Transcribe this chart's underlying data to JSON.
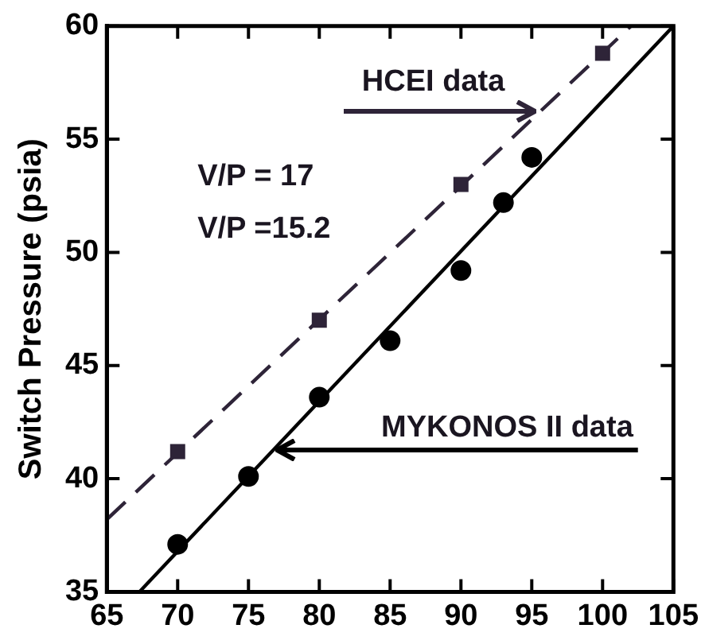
{
  "chart_data": {
    "type": "scatter",
    "ylabel": "Switch Pressure (psia)",
    "xlim": [
      65,
      105
    ],
    "xticks": [
      65,
      70,
      75,
      80,
      85,
      90,
      95,
      100,
      105
    ],
    "ylim": [
      35,
      60
    ],
    "yticks": [
      35,
      40,
      45,
      50,
      55,
      60
    ],
    "grid": false,
    "legend": false,
    "series": [
      {
        "color": "#2e2438",
        "marker": "square",
        "x": [
          70,
          80,
          90,
          100
        ],
        "values": [
          41.2,
          47.0,
          53.0,
          58.8
        ]
      },
      {
        "type": "line",
        "color": "#2e2438",
        "marker": "none",
        "line_style": "dashed",
        "x": [
          65,
          102
        ],
        "values": [
          38.2,
          60
        ]
      },
      {
        "color": "#000000",
        "marker": "circle",
        "x": [
          70,
          75,
          80,
          85,
          90,
          93,
          95
        ],
        "values": [
          37.1,
          40.1,
          43.6,
          46.1,
          49.2,
          52.2,
          54.2
        ]
      },
      {
        "type": "line",
        "color": "#000000",
        "marker": "none",
        "line_style": "solid",
        "x": [
          67.3,
          105
        ],
        "values": [
          35,
          60
        ]
      }
    ],
    "annotations": [
      {
        "text": "HCEI data",
        "x": 95.3,
        "y": 56.2
      },
      "V/P = 17",
      "V/P =15.2",
      {
        "text": "MYKONOS II data",
        "x": 76.9,
        "y": 41.3
      }
    ]
  }
}
